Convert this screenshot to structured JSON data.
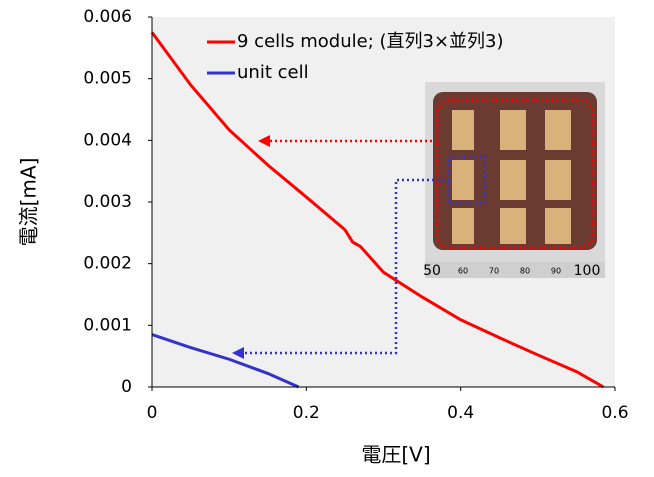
{
  "chart_data": {
    "type": "line",
    "x_label": "電圧[V]",
    "y_label": "電流[mA]",
    "xlim": [
      0,
      0.6
    ],
    "xticks": [
      0,
      0.2,
      0.4,
      0.6
    ],
    "ylim": [
      0,
      0.006
    ],
    "yticks": [
      0,
      0.001,
      0.002,
      0.003,
      0.004,
      0.005,
      0.006
    ],
    "grid": false,
    "legend": "top-right",
    "series": [
      {
        "name": "9 cells module; (直列3×並列3)",
        "color": "#ff0000",
        "x": [
          0,
          0.05,
          0.1,
          0.15,
          0.2,
          0.25,
          0.26,
          0.27,
          0.3,
          0.35,
          0.4,
          0.45,
          0.5,
          0.55,
          0.585
        ],
        "values": [
          0.00575,
          0.0049,
          0.00417,
          0.0036,
          0.00308,
          0.00255,
          0.00235,
          0.00228,
          0.00186,
          0.00146,
          0.00109,
          0.0008,
          0.00052,
          0.00025,
          0
        ]
      },
      {
        "name": "unit cell",
        "color": "#3333cc",
        "x": [
          0,
          0.05,
          0.1,
          0.15,
          0.19
        ],
        "values": [
          0.00085,
          0.00064,
          0.00045,
          0.00022,
          0
        ]
      }
    ],
    "inset_ruler_labels": [
      "50",
      "60",
      "70",
      "80",
      "90",
      "100"
    ]
  }
}
